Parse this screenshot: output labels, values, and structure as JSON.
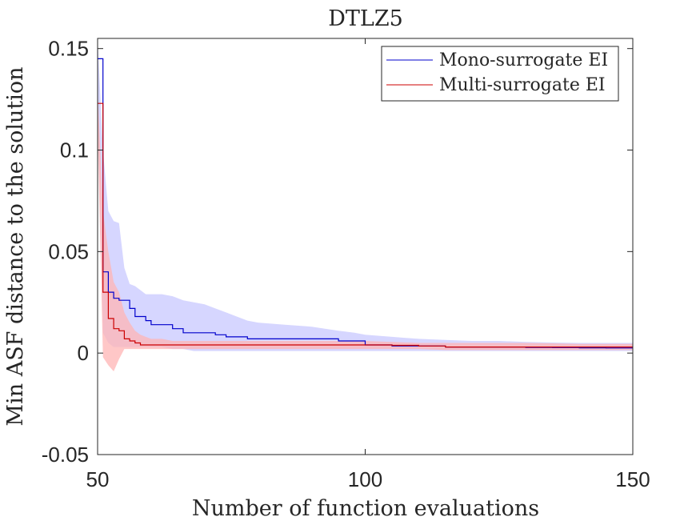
{
  "chart_data": {
    "type": "line",
    "title": "DTLZ5",
    "xlabel": "Number of function evaluations",
    "ylabel": "Min ASF distance to the solution",
    "xlim": [
      50,
      150
    ],
    "ylim": [
      -0.05,
      0.155
    ],
    "xticks": [
      50,
      100,
      150
    ],
    "yticks": [
      -0.05,
      0,
      0.05,
      0.1,
      0.15
    ],
    "ytick_labels": [
      "-0.05",
      "0",
      "0.05",
      "0.1",
      "0.15"
    ],
    "xtick_labels": [
      "50",
      "100",
      "150"
    ],
    "grid": false,
    "legend_position": "top-right",
    "series": [
      {
        "name": "Mono-surrogate EI",
        "color": "#0000cc",
        "band_color": "#c8c8ff",
        "x": [
          50,
          51,
          52,
          53,
          54,
          55,
          56,
          57,
          58,
          59,
          60,
          62,
          64,
          66,
          68,
          70,
          72,
          74,
          76,
          78,
          80,
          85,
          90,
          95,
          98,
          100,
          105,
          110,
          115,
          120,
          125,
          130,
          135,
          140,
          145,
          150
        ],
        "mean": [
          0.145,
          0.04,
          0.03,
          0.027,
          0.026,
          0.026,
          0.022,
          0.018,
          0.018,
          0.016,
          0.014,
          0.014,
          0.012,
          0.01,
          0.01,
          0.01,
          0.009,
          0.008,
          0.008,
          0.007,
          0.007,
          0.007,
          0.007,
          0.006,
          0.006,
          0.004,
          0.0035,
          0.0035,
          0.003,
          0.003,
          0.003,
          0.0028,
          0.0027,
          0.0026,
          0.0025,
          0.0025
        ],
        "upper": [
          0.155,
          0.1,
          0.07,
          0.065,
          0.064,
          0.042,
          0.034,
          0.033,
          0.031,
          0.029,
          0.029,
          0.029,
          0.028,
          0.026,
          0.025,
          0.024,
          0.022,
          0.02,
          0.018,
          0.016,
          0.015,
          0.014,
          0.013,
          0.011,
          0.01,
          0.009,
          0.008,
          0.007,
          0.0065,
          0.006,
          0.006,
          0.0055,
          0.0052,
          0.005,
          0.005,
          0.005
        ],
        "lower": [
          0.12,
          0.01,
          0.005,
          0.003,
          0.003,
          0.003,
          0.003,
          0.003,
          0.003,
          0.003,
          0.003,
          0.003,
          0.002,
          0.002,
          0.001,
          0.001,
          0.001,
          0.001,
          0.001,
          0.001,
          0.001,
          0.001,
          0.001,
          0.001,
          0.001,
          0.001,
          0.001,
          0.001,
          0.001,
          0.001,
          0.001,
          0.001,
          0.001,
          0.001,
          0.001,
          0.001
        ]
      },
      {
        "name": "Multi-surrogate EI",
        "color": "#cc0000",
        "band_color": "#ffb4b4",
        "x": [
          50,
          51,
          52,
          53,
          54,
          55,
          56,
          57,
          58,
          59,
          60,
          62,
          64,
          66,
          68,
          70,
          72,
          74,
          76,
          78,
          80,
          85,
          90,
          95,
          98,
          100,
          105,
          110,
          115,
          120,
          125,
          130,
          135,
          140,
          145,
          150
        ],
        "mean": [
          0.123,
          0.03,
          0.017,
          0.012,
          0.011,
          0.007,
          0.006,
          0.005,
          0.004,
          0.004,
          0.004,
          0.004,
          0.004,
          0.004,
          0.004,
          0.004,
          0.004,
          0.004,
          0.004,
          0.004,
          0.004,
          0.004,
          0.004,
          0.004,
          0.004,
          0.004,
          0.0038,
          0.0035,
          0.003,
          0.003,
          0.003,
          0.003,
          0.003,
          0.003,
          0.003,
          0.003
        ],
        "upper": [
          0.13,
          0.07,
          0.05,
          0.035,
          0.03,
          0.02,
          0.015,
          0.011,
          0.009,
          0.008,
          0.007,
          0.007,
          0.006,
          0.006,
          0.006,
          0.006,
          0.006,
          0.006,
          0.006,
          0.006,
          0.006,
          0.006,
          0.006,
          0.006,
          0.006,
          0.006,
          0.0055,
          0.005,
          0.005,
          0.005,
          0.005,
          0.005,
          0.0048,
          0.0045,
          0.0045,
          0.0045
        ],
        "lower": [
          0.11,
          -0.002,
          -0.006,
          -0.009,
          -0.003,
          0.002,
          0.002,
          0.002,
          0.002,
          0.002,
          0.002,
          0.002,
          0.002,
          0.002,
          0.002,
          0.002,
          0.002,
          0.002,
          0.002,
          0.002,
          0.002,
          0.002,
          0.002,
          0.002,
          0.002,
          0.002,
          0.002,
          0.002,
          0.0015,
          0.0015,
          0.0015,
          0.0015,
          0.0015,
          0.0015,
          0.0015,
          0.0015
        ]
      }
    ]
  }
}
